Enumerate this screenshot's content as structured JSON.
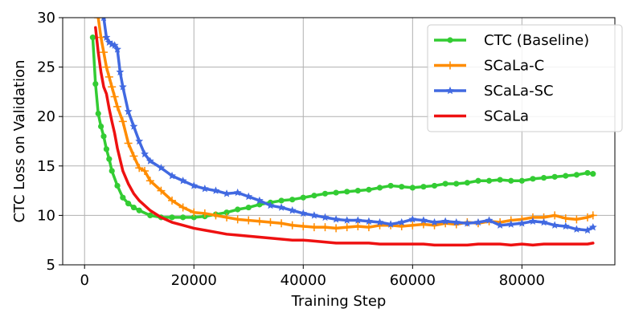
{
  "chart_data": {
    "type": "line",
    "xlabel": "Training Step",
    "ylabel": "CTC Loss on Validation",
    "xlim": [
      -4000,
      97000
    ],
    "ylim": [
      5,
      30
    ],
    "x_ticks": [
      0,
      20000,
      40000,
      60000,
      80000
    ],
    "y_ticks": [
      5,
      10,
      15,
      20,
      25,
      30
    ],
    "grid": true,
    "legend_position": "top-right",
    "series": [
      {
        "name": "CTC (Baseline)",
        "color": "#33cc33",
        "marker": "circle",
        "x": [
          1500,
          2000,
          2500,
          3000,
          3500,
          4000,
          4500,
          5000,
          6000,
          7000,
          8000,
          9000,
          10000,
          12000,
          14000,
          16000,
          18000,
          20000,
          22000,
          24000,
          26000,
          28000,
          30000,
          32000,
          34000,
          36000,
          38000,
          40000,
          42000,
          44000,
          46000,
          48000,
          50000,
          52000,
          54000,
          56000,
          58000,
          60000,
          62000,
          64000,
          66000,
          68000,
          70000,
          72000,
          74000,
          76000,
          78000,
          80000,
          82000,
          84000,
          86000,
          88000,
          90000,
          92000,
          93000
        ],
        "y": [
          28.0,
          23.3,
          20.3,
          19.0,
          18.0,
          16.7,
          15.7,
          14.5,
          13.0,
          11.8,
          11.2,
          10.8,
          10.5,
          10.0,
          9.8,
          9.8,
          9.8,
          9.8,
          9.9,
          10.1,
          10.3,
          10.6,
          10.8,
          11.1,
          11.3,
          11.5,
          11.6,
          11.8,
          12.0,
          12.2,
          12.3,
          12.4,
          12.5,
          12.6,
          12.8,
          13.0,
          12.9,
          12.8,
          12.9,
          13.0,
          13.2,
          13.2,
          13.3,
          13.5,
          13.5,
          13.6,
          13.5,
          13.5,
          13.7,
          13.8,
          13.9,
          14.0,
          14.1,
          14.3,
          14.2
        ]
      },
      {
        "name": "SCaLa-C",
        "color": "#ff8c00",
        "marker": "plus",
        "x": [
          2500,
          3000,
          3500,
          4000,
          4500,
          5000,
          5500,
          6000,
          7000,
          8000,
          9000,
          10000,
          11000,
          12000,
          14000,
          16000,
          18000,
          20000,
          22000,
          24000,
          26000,
          28000,
          30000,
          32000,
          34000,
          36000,
          38000,
          40000,
          42000,
          44000,
          46000,
          48000,
          50000,
          52000,
          54000,
          56000,
          58000,
          60000,
          62000,
          64000,
          66000,
          68000,
          70000,
          72000,
          74000,
          76000,
          78000,
          80000,
          82000,
          84000,
          86000,
          88000,
          90000,
          92000,
          93000
        ],
        "y": [
          30.0,
          28.0,
          26.5,
          25.0,
          24.0,
          23.0,
          22.0,
          21.0,
          19.5,
          17.3,
          16.0,
          14.8,
          14.5,
          13.5,
          12.5,
          11.5,
          10.8,
          10.3,
          10.2,
          10.0,
          9.8,
          9.6,
          9.5,
          9.4,
          9.3,
          9.2,
          9.0,
          8.9,
          8.8,
          8.8,
          8.7,
          8.8,
          8.9,
          8.8,
          9.0,
          9.0,
          8.9,
          9.0,
          9.1,
          9.0,
          9.2,
          9.1,
          9.3,
          9.2,
          9.4,
          9.3,
          9.5,
          9.6,
          9.8,
          9.8,
          10.0,
          9.7,
          9.6,
          9.8,
          10.0
        ]
      },
      {
        "name": "SCaLa-SC",
        "color": "#4169e1",
        "marker": "star",
        "x": [
          3500,
          4000,
          4500,
          5000,
          5500,
          6000,
          6500,
          7000,
          8000,
          9000,
          10000,
          11000,
          12000,
          14000,
          16000,
          18000,
          20000,
          22000,
          24000,
          26000,
          28000,
          30000,
          32000,
          34000,
          36000,
          38000,
          40000,
          42000,
          44000,
          46000,
          48000,
          50000,
          52000,
          54000,
          56000,
          58000,
          60000,
          62000,
          64000,
          66000,
          68000,
          70000,
          72000,
          74000,
          76000,
          78000,
          80000,
          82000,
          84000,
          86000,
          88000,
          90000,
          92000,
          93000
        ],
        "y": [
          30.0,
          28.0,
          27.5,
          27.3,
          27.2,
          26.8,
          24.5,
          23.0,
          20.5,
          19.0,
          17.5,
          16.2,
          15.5,
          14.8,
          14.0,
          13.5,
          13.0,
          12.7,
          12.5,
          12.2,
          12.3,
          11.9,
          11.5,
          11.0,
          10.8,
          10.5,
          10.2,
          10.0,
          9.8,
          9.6,
          9.5,
          9.5,
          9.4,
          9.3,
          9.1,
          9.3,
          9.6,
          9.5,
          9.3,
          9.4,
          9.3,
          9.2,
          9.3,
          9.5,
          9.0,
          9.1,
          9.2,
          9.4,
          9.3,
          9.0,
          8.9,
          8.6,
          8.5,
          8.8
        ]
      },
      {
        "name": "SCaLa",
        "color": "#ee1111",
        "marker": "none",
        "x": [
          2000,
          2500,
          3000,
          3500,
          4000,
          4500,
          5000,
          5500,
          6000,
          7000,
          8000,
          9000,
          10000,
          12000,
          14000,
          16000,
          18000,
          20000,
          22000,
          24000,
          26000,
          28000,
          30000,
          32000,
          34000,
          36000,
          38000,
          40000,
          42000,
          44000,
          46000,
          48000,
          50000,
          52000,
          54000,
          56000,
          58000,
          60000,
          62000,
          64000,
          66000,
          68000,
          70000,
          72000,
          74000,
          76000,
          78000,
          80000,
          82000,
          84000,
          86000,
          88000,
          90000,
          92000,
          93000
        ],
        "y": [
          29.0,
          26.5,
          24.5,
          23.0,
          22.3,
          20.8,
          19.5,
          18.3,
          16.8,
          14.5,
          13.2,
          12.2,
          11.5,
          10.5,
          9.8,
          9.3,
          9.0,
          8.7,
          8.5,
          8.3,
          8.1,
          8.0,
          7.9,
          7.8,
          7.7,
          7.6,
          7.5,
          7.5,
          7.4,
          7.3,
          7.2,
          7.2,
          7.2,
          7.2,
          7.1,
          7.1,
          7.1,
          7.1,
          7.1,
          7.0,
          7.0,
          7.0,
          7.0,
          7.1,
          7.1,
          7.1,
          7.0,
          7.1,
          7.0,
          7.1,
          7.1,
          7.1,
          7.1,
          7.1,
          7.2
        ]
      }
    ]
  }
}
